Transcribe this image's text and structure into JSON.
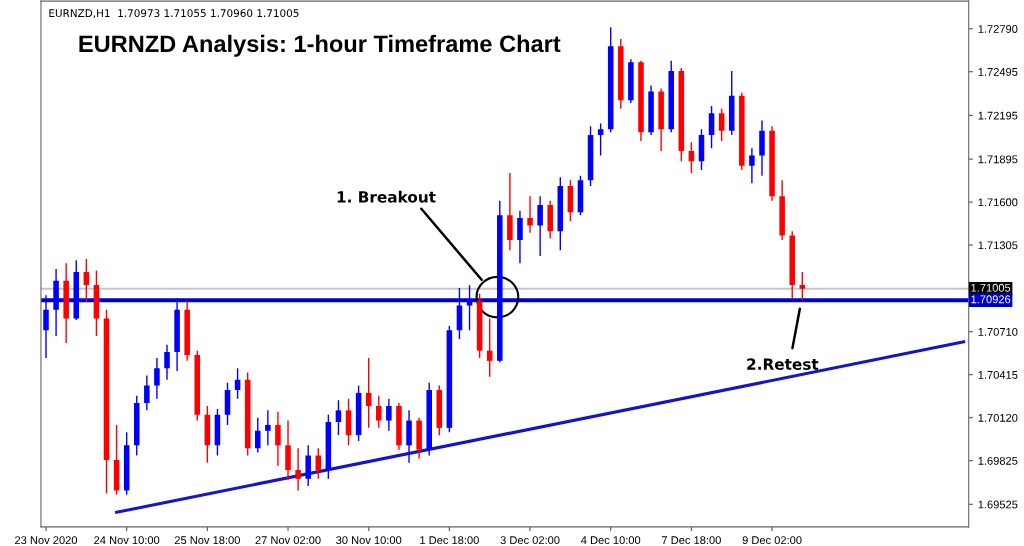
{
  "chart_data": {
    "type": "candlestick",
    "title": "EURNZD Analysis: 1-hour Timeframe Chart",
    "annotations": [
      "EURNZD,H1  1.70973 1.71055 1.70960 1.71005",
      "1. Breakout",
      "2.Retest"
    ],
    "categories": [
      "23 Nov 2020",
      null,
      null,
      null,
      null,
      null,
      null,
      null,
      "24 Nov 10:00",
      null,
      null,
      null,
      null,
      null,
      null,
      null,
      "25 Nov 18:00",
      null,
      null,
      null,
      null,
      null,
      null,
      null,
      "27 Nov 02:00",
      null,
      null,
      null,
      null,
      null,
      null,
      null,
      "30 Nov 10:00",
      null,
      null,
      null,
      null,
      null,
      null,
      null,
      "1 Dec 18:00",
      null,
      null,
      null,
      null,
      null,
      null,
      null,
      "3 Dec 02:00",
      null,
      null,
      null,
      null,
      null,
      null,
      null,
      "4 Dec 10:00",
      null,
      null,
      null,
      null,
      null,
      null,
      null,
      "7 Dec 18:00",
      null,
      null,
      null,
      null,
      null,
      null,
      null,
      "9 Dec 02:00",
      null,
      null,
      null,
      null,
      null,
      null,
      null,
      null,
      null,
      null,
      null,
      null,
      null,
      null,
      null,
      null,
      null,
      null,
      null
    ],
    "ohlc": [
      [
        1.7072,
        1.7096,
        1.7053,
        1.7086
      ],
      [
        1.7086,
        1.7114,
        1.7068,
        1.7106
      ],
      [
        1.7106,
        1.7118,
        1.7063,
        1.708
      ],
      [
        1.708,
        1.712,
        1.7079,
        1.7112
      ],
      [
        1.7112,
        1.7121,
        1.7092,
        1.7103
      ],
      [
        1.7103,
        1.7113,
        1.7068,
        1.708
      ],
      [
        1.708,
        1.7086,
        1.696,
        1.6983
      ],
      [
        1.6983,
        1.7007,
        1.6959,
        1.6962
      ],
      [
        1.6962,
        1.7002,
        1.6959,
        1.6993
      ],
      [
        1.6993,
        1.7027,
        1.6986,
        1.7022
      ],
      [
        1.7022,
        1.7041,
        1.7017,
        1.7034
      ],
      [
        1.7034,
        1.7053,
        1.7025,
        1.7046
      ],
      [
        1.7046,
        1.7062,
        1.7038,
        1.7057
      ],
      [
        1.7057,
        1.7094,
        1.7044,
        1.7086
      ],
      [
        1.7086,
        1.7092,
        1.7051,
        1.7055
      ],
      [
        1.7055,
        1.7058,
        1.701,
        1.7014
      ],
      [
        1.7014,
        1.702,
        1.6981,
        1.6993
      ],
      [
        1.6993,
        1.7018,
        1.6986,
        1.7014
      ],
      [
        1.7014,
        1.7036,
        1.7007,
        1.7031
      ],
      [
        1.7031,
        1.7046,
        1.7025,
        1.7038
      ],
      [
        1.7038,
        1.7043,
        1.6986,
        1.6991
      ],
      [
        1.6991,
        1.7012,
        1.6988,
        1.7003
      ],
      [
        1.7003,
        1.7017,
        1.6993,
        1.7007
      ],
      [
        1.7007,
        1.7016,
        1.6979,
        1.6993
      ],
      [
        1.6993,
        1.701,
        1.6969,
        1.6976
      ],
      [
        1.6976,
        1.6991,
        1.6962,
        1.697
      ],
      [
        1.697,
        1.6993,
        1.6965,
        1.6986
      ],
      [
        1.6986,
        1.6991,
        1.697,
        1.6976
      ],
      [
        1.6976,
        1.7014,
        1.697,
        1.7009
      ],
      [
        1.7009,
        1.7024,
        1.7,
        1.7017
      ],
      [
        1.7017,
        1.7025,
        1.6993,
        1.7
      ],
      [
        1.7,
        1.7034,
        1.6996,
        1.7029
      ],
      [
        1.7029,
        1.7053,
        1.7005,
        1.702
      ],
      [
        1.702,
        1.7027,
        1.7005,
        1.701
      ],
      [
        1.701,
        1.7025,
        1.7003,
        1.702
      ],
      [
        1.702,
        1.7022,
        1.699,
        1.6993
      ],
      [
        1.6993,
        1.7017,
        1.6981,
        1.701
      ],
      [
        1.701,
        1.7012,
        1.6984,
        1.699
      ],
      [
        1.699,
        1.7036,
        1.6986,
        1.7031
      ],
      [
        1.7031,
        1.7034,
        1.7,
        1.7005
      ],
      [
        1.7005,
        1.7075,
        1.7002,
        1.7072
      ],
      [
        1.7072,
        1.7101,
        1.7066,
        1.7089
      ],
      [
        1.7089,
        1.7103,
        1.7072,
        1.7092
      ],
      [
        1.7092,
        1.7097,
        1.7053,
        1.7058
      ],
      [
        1.7058,
        1.708,
        1.704,
        1.7051
      ],
      [
        1.7051,
        1.7161,
        1.705,
        1.7151
      ],
      [
        1.7151,
        1.718,
        1.7127,
        1.7134
      ],
      [
        1.7134,
        1.7154,
        1.7118,
        1.7149
      ],
      [
        1.7149,
        1.7164,
        1.7139,
        1.7144
      ],
      [
        1.7144,
        1.7164,
        1.7123,
        1.7158
      ],
      [
        1.7158,
        1.7161,
        1.7135,
        1.714
      ],
      [
        1.714,
        1.7177,
        1.7127,
        1.7171
      ],
      [
        1.7171,
        1.7175,
        1.7147,
        1.7153
      ],
      [
        1.7153,
        1.7178,
        1.7151,
        1.7175
      ],
      [
        1.7175,
        1.7212,
        1.7171,
        1.7206
      ],
      [
        1.7206,
        1.7214,
        1.7192,
        1.721
      ],
      [
        1.721,
        1.728,
        1.7208,
        1.7267
      ],
      [
        1.7267,
        1.7272,
        1.7224,
        1.723
      ],
      [
        1.723,
        1.7258,
        1.7228,
        1.7256
      ],
      [
        1.7256,
        1.7257,
        1.7202,
        1.7208
      ],
      [
        1.7208,
        1.724,
        1.7206,
        1.7236
      ],
      [
        1.7236,
        1.7238,
        1.7195,
        1.721
      ],
      [
        1.721,
        1.7257,
        1.7208,
        1.725
      ],
      [
        1.725,
        1.7252,
        1.7188,
        1.7195
      ],
      [
        1.7195,
        1.7201,
        1.718,
        1.7188
      ],
      [
        1.7188,
        1.721,
        1.7182,
        1.7206
      ],
      [
        1.7206,
        1.7226,
        1.7197,
        1.7221
      ],
      [
        1.7221,
        1.7224,
        1.7202,
        1.7209
      ],
      [
        1.7209,
        1.725,
        1.7206,
        1.7233
      ],
      [
        1.7233,
        1.7235,
        1.7182,
        1.7185
      ],
      [
        1.7185,
        1.7197,
        1.7173,
        1.7192
      ],
      [
        1.7192,
        1.7216,
        1.7178,
        1.7209
      ],
      [
        1.7209,
        1.7212,
        1.7161,
        1.7164
      ],
      [
        1.7164,
        1.7175,
        1.7134,
        1.7137
      ],
      [
        1.7137,
        1.714,
        1.7094,
        1.7103
      ],
      [
        1.7103,
        1.7112,
        1.7093,
        1.71005
      ],
      null,
      null,
      null,
      null,
      null,
      null,
      null,
      null,
      null,
      null,
      null,
      null,
      null,
      null,
      null,
      null
    ],
    "colors": [
      "#0000ff",
      "#0000ff",
      "#ff0000",
      "#0000ff",
      "#ff0000",
      "#ff0000",
      "#ff0000",
      "#ff0000",
      "#0000ff",
      "#0000ff",
      "#0000ff",
      "#0000ff",
      "#0000ff",
      "#0000ff",
      "#ff0000",
      "#ff0000",
      "#ff0000",
      "#0000ff",
      "#0000ff",
      "#0000ff",
      "#ff0000",
      "#0000ff",
      "#0000ff",
      "#ff0000",
      "#ff0000",
      "#ff0000",
      "#0000ff",
      "#ff0000",
      "#0000ff",
      "#0000ff",
      "#ff0000",
      "#0000ff",
      "#ff0000",
      "#ff0000",
      "#0000ff",
      "#ff0000",
      "#0000ff",
      "#ff0000",
      "#0000ff",
      "#ff0000",
      "#0000ff",
      "#0000ff",
      "#0000ff",
      "#ff0000",
      "#ff0000",
      "#0000ff",
      "#ff0000",
      "#0000ff",
      "#ff0000",
      "#0000ff",
      "#ff0000",
      "#0000ff",
      "#ff0000",
      "#0000ff",
      "#0000ff",
      "#0000ff",
      "#0000ff",
      "#ff0000",
      "#0000ff",
      "#ff0000",
      "#0000ff",
      "#ff0000",
      "#0000ff",
      "#ff0000",
      "#ff0000",
      "#0000ff",
      "#0000ff",
      "#ff0000",
      "#0000ff",
      "#ff0000",
      "#0000ff",
      "#0000ff",
      "#ff0000",
      "#ff0000",
      "#ff0000",
      "#ff0000",
      null,
      null,
      null,
      null,
      null,
      null,
      null,
      null,
      null,
      null,
      null,
      null,
      null,
      null,
      null,
      null
    ],
    "series": [
      {
        "type": "line",
        "color": "#1414c8",
        "values": [
          null,
          null,
          null,
          null,
          null,
          null,
          null,
          1.6947,
          null,
          null,
          null,
          null,
          null,
          null,
          null,
          null,
          null,
          null,
          null,
          null,
          null,
          null,
          null,
          null,
          null,
          null,
          null,
          null,
          null,
          null,
          null,
          null,
          null,
          null,
          null,
          null,
          null,
          null,
          null,
          null,
          null,
          null,
          null,
          null,
          null,
          null,
          null,
          null,
          null,
          null,
          null,
          null,
          null,
          null,
          null,
          null,
          null,
          null,
          null,
          null,
          null,
          null,
          null,
          null,
          null,
          null,
          null,
          null,
          null,
          null,
          null,
          null,
          null,
          null,
          null,
          null,
          null,
          null,
          null,
          null,
          null,
          null,
          null,
          null,
          null,
          null,
          null,
          null,
          null,
          null,
          null,
          1.7064
        ]
      }
    ],
    "ylim": [
      1.6937,
      1.7298
    ],
    "yticks": [
      {
        "value": 1.69525,
        "label": "1.69525"
      },
      {
        "value": 1.69825,
        "label": "1.69825"
      },
      {
        "value": 1.7012,
        "label": "1.70120"
      },
      {
        "value": 1.70415,
        "label": "1.70415"
      },
      {
        "value": 1.7071,
        "label": "1.70710"
      },
      {
        "value": 1.71305,
        "label": "1.71305"
      },
      {
        "value": 1.716,
        "label": "1.71600"
      },
      {
        "value": 1.71895,
        "label": "1.71895"
      },
      {
        "value": 1.72195,
        "label": "1.72195"
      },
      {
        "value": 1.72495,
        "label": "1.72495"
      },
      {
        "value": 1.7279,
        "label": "1.72790"
      }
    ],
    "ref_lines": [
      {
        "axis": "y",
        "value": 1.71005,
        "label": "1.71005",
        "color": "#c0c8cc"
      },
      {
        "axis": "y",
        "value": 1.70926,
        "label": "1.70926",
        "color": "#0000cd"
      }
    ]
  }
}
